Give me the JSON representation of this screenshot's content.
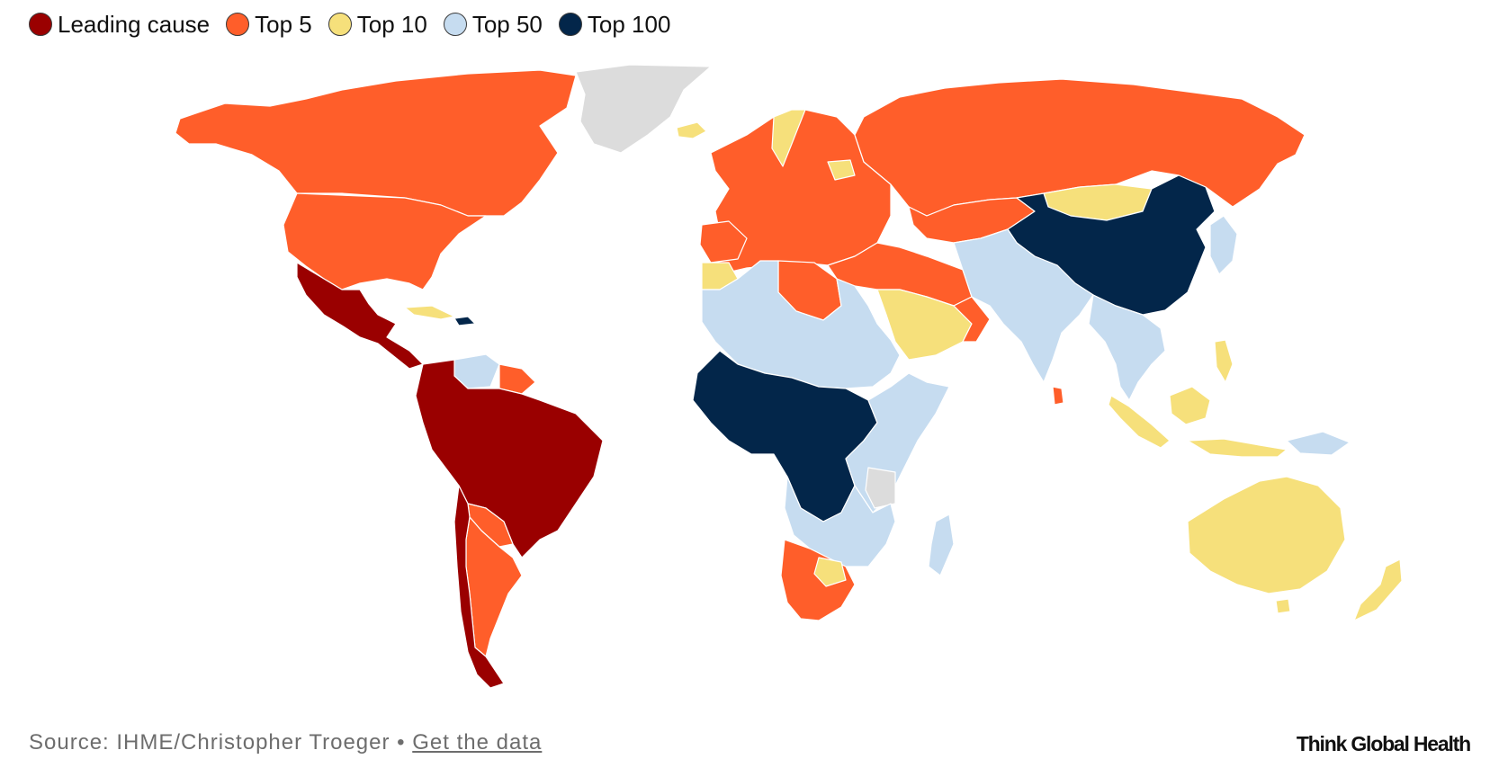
{
  "legend": {
    "items": [
      {
        "label": "Leading cause",
        "color": "#9a0000"
      },
      {
        "label": "Top 5",
        "color": "#ff5e2a"
      },
      {
        "label": "Top 10",
        "color": "#f6e07b"
      },
      {
        "label": "Top 50",
        "color": "#c6dcf0"
      },
      {
        "label": "Top 100",
        "color": "#03264a"
      }
    ]
  },
  "map": {
    "no_data_color": "#dcdcdc"
  },
  "footer": {
    "source_text": "Source: IHME/Christopher Troeger",
    "separator": "•",
    "link_text": "Get the data",
    "brand": "Think Global Health"
  }
}
